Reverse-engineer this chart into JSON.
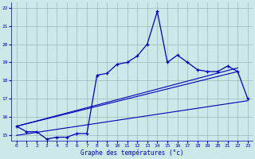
{
  "xlabel": "Graphe des températures (°c)",
  "bg_color": "#cce8e8",
  "line_color": "#0000bb",
  "grid_color": "#99bbbb",
  "xlim": [
    -0.5,
    23.5
  ],
  "ylim": [
    14.7,
    22.3
  ],
  "yticks": [
    15,
    16,
    17,
    18,
    19,
    20,
    21,
    22
  ],
  "xticks": [
    0,
    1,
    2,
    3,
    4,
    5,
    6,
    7,
    8,
    9,
    10,
    11,
    12,
    13,
    14,
    15,
    16,
    17,
    18,
    19,
    20,
    21,
    22,
    23
  ],
  "temp_x": [
    0,
    1,
    2,
    3,
    4,
    5,
    6,
    7,
    8,
    9,
    10,
    11,
    12,
    13,
    14,
    15,
    16,
    17,
    18,
    19,
    20,
    21,
    22,
    23
  ],
  "temp_y": [
    15.5,
    15.2,
    15.2,
    14.8,
    14.9,
    14.9,
    15.1,
    15.1,
    18.3,
    18.4,
    18.9,
    19.0,
    19.35,
    20.0,
    21.8,
    19.0,
    19.4,
    19.0,
    18.6,
    18.5,
    18.5,
    18.8,
    18.5,
    17.0
  ],
  "line1_x": [
    0,
    22
  ],
  "line1_y": [
    15.5,
    18.5
  ],
  "line2_x": [
    0,
    22
  ],
  "line2_y": [
    15.5,
    18.7
  ],
  "line3_x": [
    0,
    23
  ],
  "line3_y": [
    15.0,
    16.9
  ]
}
